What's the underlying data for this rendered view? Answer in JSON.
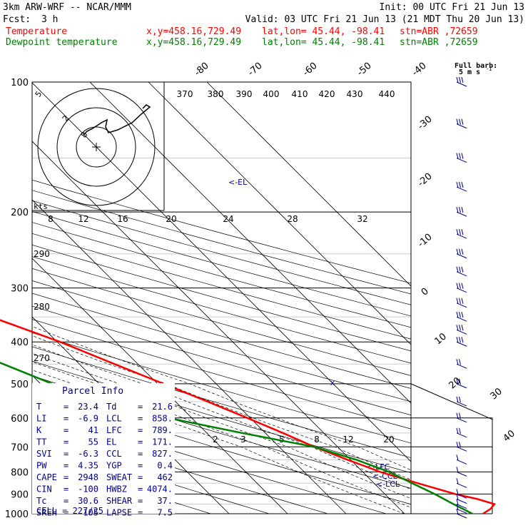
{
  "header": {
    "model": "3km ARW-WRF -- NCAR/MMM",
    "init": "Init: 00 UTC Fri 21 Jun 13",
    "fcst_label": "Fcst:",
    "fcst_value": "3 h",
    "valid": "Valid: 03 UTC Fri 21 Jun 13 (21 MDT Thu 20 Jun 13)",
    "temp_line": {
      "name": "Temperature",
      "xy": "x,y=458.16,729.49",
      "latlon": "lat,lon= 45.44, -98.41",
      "stn": "stn=ABR ,72659",
      "color": "#ff0000"
    },
    "dew_line": {
      "name": "Dewpoint temperature",
      "xy": "x,y=458.16,729.49",
      "latlon": "lat,lon= 45.44, -98.41",
      "stn": "stn=ABR ,72659",
      "color": "#008000"
    }
  },
  "full_barb_label": "Full barb:",
  "full_barb_value": "5 m s",
  "full_barb_exp": "-1",
  "hodograph": {
    "unit": "kts",
    "ring_labels": [
      "5",
      "2",
      "8"
    ]
  },
  "chart_data": {
    "type": "skew-t",
    "pressure_levels": [
      100,
      200,
      300,
      400,
      500,
      600,
      700,
      800,
      900,
      1000
    ],
    "skewed_temp_labels": [
      "-80",
      "-70",
      "-60",
      "-50",
      "-40",
      "-30",
      "-20",
      "-10",
      "0",
      "10",
      "20",
      "30",
      "40"
    ],
    "theta_labels_top": [
      "370",
      "380",
      "390",
      "400",
      "410",
      "420",
      "430",
      "440"
    ],
    "theta_labels_left": [
      "290",
      "280",
      "270"
    ],
    "mixing_ratio_upper": [
      "8",
      "12",
      "16",
      "20",
      "24",
      "28",
      "32"
    ],
    "mixing_ratio_lower": [
      "2",
      "3",
      "5",
      "8",
      "12",
      "20"
    ],
    "temperature_profile": [
      {
        "p": 1000,
        "t": 23.4
      },
      {
        "p": 975,
        "t": 25.5
      },
      {
        "p": 950,
        "t": 27.0
      },
      {
        "p": 925,
        "t": 25.0
      },
      {
        "p": 900,
        "t": 22.0
      },
      {
        "p": 850,
        "t": 17.5
      },
      {
        "p": 800,
        "t": 13.0
      },
      {
        "p": 750,
        "t": 9.5
      },
      {
        "p": 700,
        "t": 6.0
      },
      {
        "p": 650,
        "t": 3.0
      },
      {
        "p": 600,
        "t": -0.5
      },
      {
        "p": 550,
        "t": -4.5
      },
      {
        "p": 500,
        "t": -9.0
      },
      {
        "p": 450,
        "t": -14.0
      },
      {
        "p": 400,
        "t": -19.5
      },
      {
        "p": 350,
        "t": -27.0
      },
      {
        "p": 300,
        "t": -35.5
      },
      {
        "p": 250,
        "t": -46.0
      },
      {
        "p": 200,
        "t": -57.0
      },
      {
        "p": 175,
        "t": -62.0
      },
      {
        "p": 150,
        "t": -62.0
      },
      {
        "p": 125,
        "t": -58.0
      },
      {
        "p": 100,
        "t": -54.0
      }
    ],
    "dewpoint_profile": [
      {
        "p": 1000,
        "t": 21.6
      },
      {
        "p": 950,
        "t": 20.0
      },
      {
        "p": 900,
        "t": 18.5
      },
      {
        "p": 850,
        "t": 16.5
      },
      {
        "p": 800,
        "t": 14.5
      },
      {
        "p": 750,
        "t": 11.0
      },
      {
        "p": 700,
        "t": 6.0
      },
      {
        "p": 650,
        "t": -4.0
      },
      {
        "p": 600,
        "t": -14.0
      },
      {
        "p": 550,
        "t": -22.0
      },
      {
        "p": 500,
        "t": -28.0
      },
      {
        "p": 450,
        "t": -33.0
      },
      {
        "p": 400,
        "t": -39.0
      },
      {
        "p": 350,
        "t": -44.0
      },
      {
        "p": 300,
        "t": -50.0
      },
      {
        "p": 275,
        "t": -47.0
      },
      {
        "p": 250,
        "t": -44.0
      },
      {
        "p": 225,
        "t": -44.0
      },
      {
        "p": 200,
        "t": -50.0
      },
      {
        "p": 190,
        "t": -57.0
      },
      {
        "p": 175,
        "t": -59.0
      },
      {
        "p": 150,
        "t": -60.0
      },
      {
        "p": 125,
        "t": -67.0
      },
      {
        "p": 100,
        "t": -76.0
      }
    ],
    "markers": {
      "el": "<-EL",
      "lfc": "<-LFC",
      "ccl": "<-CCL",
      "lcl": "<-LCL"
    },
    "wind_barbs_levels": [
      100,
      125,
      150,
      175,
      200,
      225,
      250,
      275,
      300,
      325,
      350,
      375,
      400,
      450,
      500,
      550,
      600,
      650,
      700,
      750,
      800,
      850,
      900,
      925,
      950,
      975,
      1000
    ]
  },
  "parcel_info": {
    "title": "Parcel Info",
    "rows": [
      {
        "l1": "T",
        "v1": "23.4",
        "l2": "Td",
        "v2": "21.6"
      },
      {
        "l1": "LI",
        "v1": "-6.9",
        "l2": "LCL",
        "v2": "858."
      },
      {
        "l1": "K",
        "v1": "41",
        "l2": "LFC",
        "v2": "789."
      },
      {
        "l1": "TT",
        "v1": "55",
        "l2": "EL",
        "v2": "171."
      },
      {
        "l1": "SVI",
        "v1": "-6.3",
        "l2": "CCL",
        "v2": "827."
      },
      {
        "l1": "PW",
        "v1": "4.35",
        "l2": "YGP",
        "v2": "0.4"
      },
      {
        "l1": "CAPE",
        "v1": "2948",
        "l2": "SWEAT",
        "v2": "462"
      },
      {
        "l1": "CIN",
        "v1": "-100",
        "l2": "HWBZ",
        "v2": "4074."
      },
      {
        "l1": "Tc",
        "v1": "30.6",
        "l2": "SHEAR",
        "v2": "37."
      },
      {
        "l1": "SREH",
        "v1": "105",
        "l2": "LAPSE",
        "v2": "7.5"
      }
    ],
    "cell": "CELL = 227/25"
  }
}
